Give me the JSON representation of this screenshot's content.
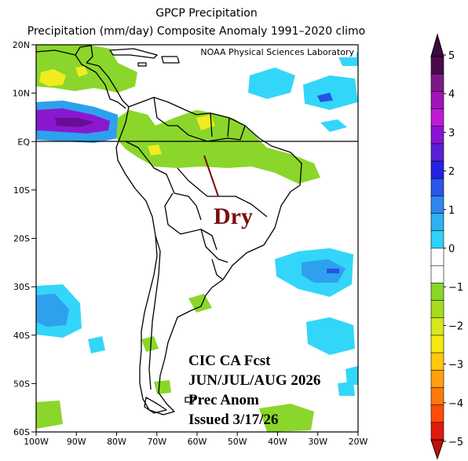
{
  "title": "GPCP Precipitation",
  "subtitle": "Precipitation (mm/day) Composite Anomaly 1991–2020 climo",
  "credit": "NOAA Physical Sciences Laboratory",
  "annotation_dry": "Dry",
  "forecast_label": {
    "line1": "CIC CA Fcst",
    "line2": "JUN/JUL/AUG 2026",
    "line3": "Prec Anom",
    "line4": "Issued 3/17/26"
  },
  "lat_ticks": [
    "20N",
    "10N",
    "EQ",
    "10S",
    "20S",
    "30S",
    "40S",
    "50S",
    "60S"
  ],
  "lon_ticks": [
    "100W",
    "90W",
    "80W",
    "70W",
    "60W",
    "50W",
    "40W",
    "30W",
    "20W"
  ],
  "colorbar": {
    "labels": [
      "5",
      "4",
      "3",
      "2",
      "1",
      "0",
      "−1",
      "−2",
      "−3",
      "−4",
      "−5"
    ],
    "colors": [
      "#4b0a4f",
      "#7b1a86",
      "#a014b8",
      "#c019d8",
      "#8a14d2",
      "#5a1fd6",
      "#2222e0",
      "#2c55ec",
      "#2f86ee",
      "#2fb0f0",
      "#2fd2f8",
      "#ffffff",
      "#ffffff",
      "#88d62a",
      "#a6dc1e",
      "#d6e81c",
      "#f7e812",
      "#ffc80c",
      "#ffa00c",
      "#ff780c",
      "#ff4c0c",
      "#e01a0a"
    ],
    "top_arrow": "#3b0a3f",
    "bottom_arrow": "#c0100a"
  },
  "palette": {
    "green": "#8bd62a",
    "light_blue": "#33d6f8",
    "mid_blue": "#2fa0ee",
    "blue": "#2255e4",
    "purple": "#8a18d0",
    "yellow": "#f0ec20",
    "wet_core": "#6a0d96"
  }
}
